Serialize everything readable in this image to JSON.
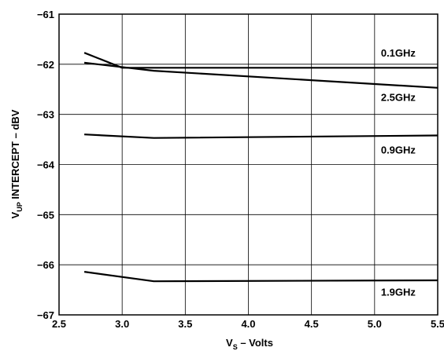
{
  "chart_data": {
    "type": "line",
    "title": "",
    "xlabel": {
      "main": "V",
      "sub": "S",
      "rest": " – Volts"
    },
    "ylabel": {
      "main": "V",
      "sub": "UP",
      "rest": " INTERCEPT – dBV"
    },
    "xlim": [
      2.5,
      5.5
    ],
    "ylim": [
      -67,
      -61
    ],
    "x_ticks": [
      "2.5",
      "3.0",
      "3.5",
      "4.0",
      "4.5",
      "5.0",
      "5.5"
    ],
    "y_ticks": [
      "−61",
      "−62",
      "−63",
      "−64",
      "−65",
      "−66",
      "−67"
    ],
    "grid": true,
    "series": [
      {
        "name": "0.1GHz",
        "x": [
          2.7,
          3.0,
          3.25,
          5.5
        ],
        "y": [
          -61.77,
          -62.07,
          -62.07,
          -62.07
        ]
      },
      {
        "name": "2.5GHz",
        "x": [
          2.7,
          3.25,
          5.5
        ],
        "y": [
          -61.97,
          -62.13,
          -62.47
        ]
      },
      {
        "name": "0.9GHz",
        "x": [
          2.7,
          3.25,
          5.5
        ],
        "y": [
          -63.4,
          -63.47,
          -63.42
        ]
      },
      {
        "name": "1.9GHz",
        "x": [
          2.7,
          3.25,
          5.5
        ],
        "y": [
          -66.14,
          -66.33,
          -66.31
        ]
      }
    ],
    "labels": [
      {
        "series": "0.1GHz",
        "text": "0.1GHz",
        "x": 5.05,
        "y": -61.77
      },
      {
        "series": "2.5GHz",
        "text": "2.5GHz",
        "x": 5.05,
        "y": -62.65
      },
      {
        "series": "0.9GHz",
        "text": "0.9GHz",
        "x": 5.05,
        "y": -63.7
      },
      {
        "series": "1.9GHz",
        "text": "1.9GHz",
        "x": 5.05,
        "y": -66.54
      }
    ]
  }
}
